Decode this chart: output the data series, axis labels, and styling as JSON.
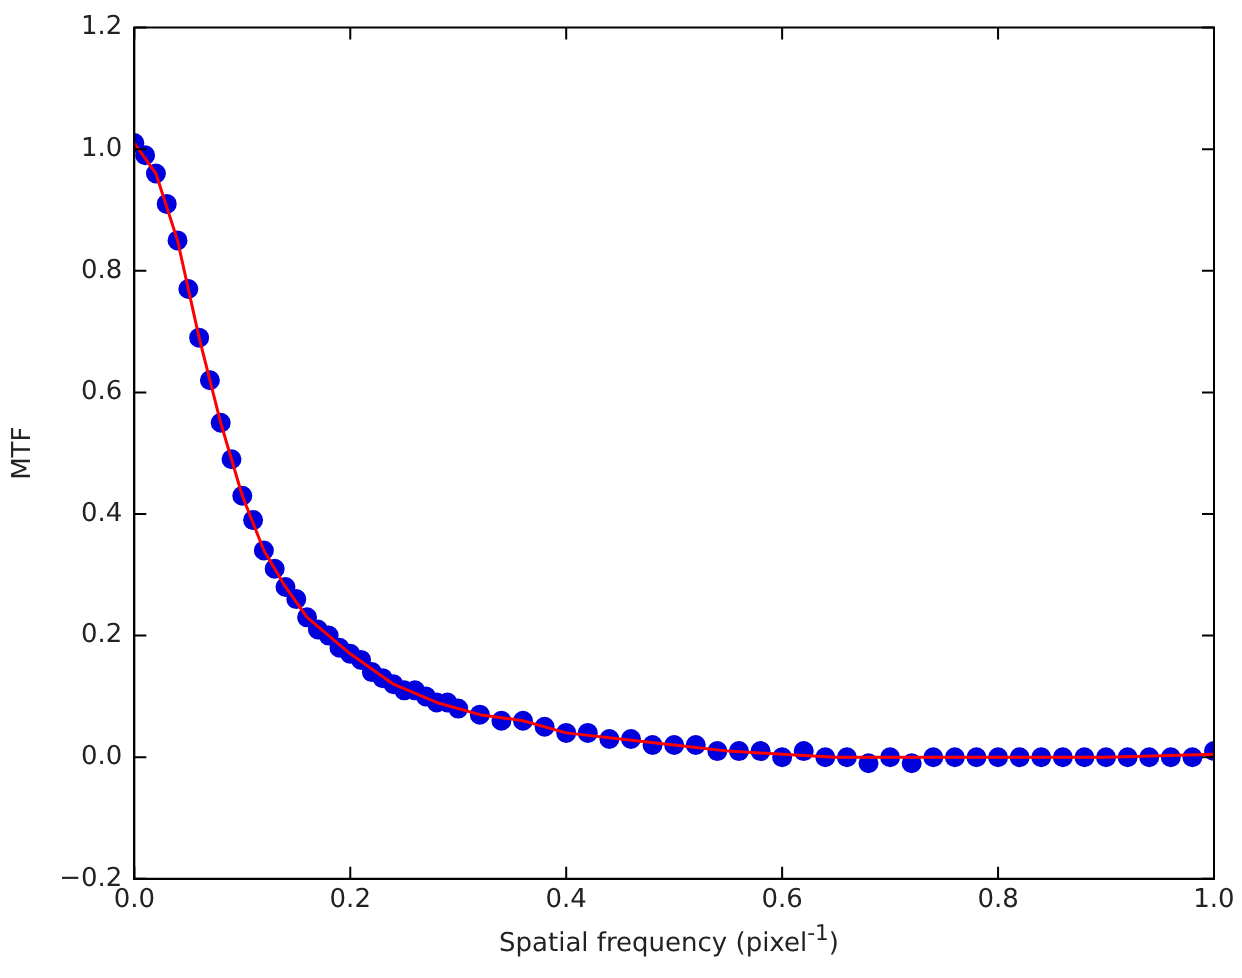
{
  "chart_data": {
    "type": "scatter",
    "xlabel": "Spatial frequency (pixel$^{-1}$)",
    "ylabel": "MTF",
    "grid": false,
    "xlim": [
      0,
      1
    ],
    "ylim": [
      -0.2,
      1.2
    ],
    "xticks": [
      {
        "value": 0,
        "label": "0.0"
      },
      {
        "value": 0.2,
        "label": "0.2"
      },
      {
        "value": 0.4,
        "label": "0.4"
      },
      {
        "value": 0.6,
        "label": "0.6"
      },
      {
        "value": 0.8,
        "label": "0.8"
      },
      {
        "value": 1,
        "label": "1.0"
      }
    ],
    "yticks": [
      {
        "value": -0.2,
        "label": "−0.2"
      },
      {
        "value": 0,
        "label": "0.0"
      },
      {
        "value": 0.2,
        "label": "0.2"
      },
      {
        "value": 0.4,
        "label": "0.4"
      },
      {
        "value": 0.6,
        "label": "0.6"
      },
      {
        "value": 0.8,
        "label": "0.8"
      },
      {
        "value": 1,
        "label": "1.0"
      },
      {
        "value": 1.2,
        "label": "1.2"
      }
    ],
    "series": [
      {
        "marker": "circle",
        "color": "#0000dd",
        "x": [
          0,
          0.01,
          0.02,
          0.03,
          0.04,
          0.05,
          0.06,
          0.07,
          0.08,
          0.09,
          0.1,
          0.11,
          0.12,
          0.13,
          0.14,
          0.15,
          0.16,
          0.17,
          0.18,
          0.19,
          0.2,
          0.21,
          0.22,
          0.23,
          0.24,
          0.25,
          0.26,
          0.27,
          0.28,
          0.29,
          0.3,
          0.32,
          0.34,
          0.36,
          0.38,
          0.4,
          0.42,
          0.44,
          0.46,
          0.48,
          0.5,
          0.52,
          0.54,
          0.56,
          0.58,
          0.6,
          0.62,
          0.64,
          0.66,
          0.68,
          0.7,
          0.72,
          0.74,
          0.76,
          0.78,
          0.8,
          0.82,
          0.84,
          0.86,
          0.88,
          0.9,
          0.92,
          0.94,
          0.96,
          0.98,
          1
        ],
        "values": [
          1.01,
          0.99,
          0.96,
          0.91,
          0.85,
          0.77,
          0.69,
          0.62,
          0.55,
          0.49,
          0.43,
          0.39,
          0.34,
          0.31,
          0.28,
          0.26,
          0.23,
          0.21,
          0.2,
          0.18,
          0.17,
          0.16,
          0.14,
          0.13,
          0.12,
          0.11,
          0.11,
          0.1,
          0.09,
          0.09,
          0.08,
          0.07,
          0.06,
          0.06,
          0.05,
          0.04,
          0.04,
          0.03,
          0.03,
          0.02,
          0.02,
          0.02,
          0.01,
          0.01,
          0.01,
          0,
          0.01,
          0,
          0,
          -0.01,
          0,
          -0.01,
          0,
          0,
          0,
          0,
          0,
          0,
          0,
          0,
          0,
          0,
          0,
          0,
          0,
          0.01
        ]
      },
      {
        "type": "line",
        "marker": "none",
        "color": "#ff0000",
        "x": [
          0,
          0.02,
          0.04,
          0.06,
          0.08,
          0.1,
          0.12,
          0.14,
          0.16,
          0.18,
          0.2,
          0.24,
          0.28,
          0.32,
          0.36,
          0.4,
          0.45,
          0.5,
          0.55,
          0.6,
          0.65,
          0.7,
          0.8,
          0.9,
          1
        ],
        "values": [
          1.01,
          0.96,
          0.85,
          0.69,
          0.55,
          0.43,
          0.34,
          0.28,
          0.23,
          0.2,
          0.17,
          0.12,
          0.09,
          0.07,
          0.06,
          0.04,
          0.03,
          0.02,
          0.01,
          0.005,
          0,
          0,
          0,
          0,
          0.005
        ]
      }
    ]
  }
}
